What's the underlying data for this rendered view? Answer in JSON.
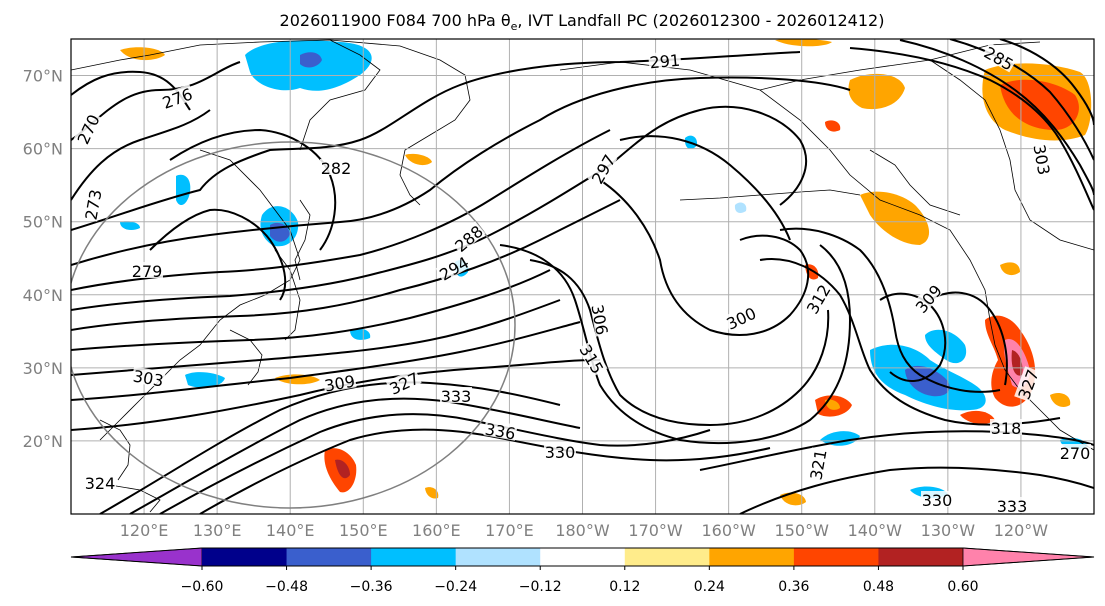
{
  "title_parts": {
    "prefix": "2026011900 F084 700 hPa θ",
    "subscript": "e",
    "suffix": ", IVT Landfall PC (2026012300 - 2026012412)"
  },
  "map": {
    "lat_range": [
      10,
      75
    ],
    "lon_range_east": [
      110,
      250
    ],
    "lat_ticks": [
      "20°N",
      "30°N",
      "40°N",
      "50°N",
      "60°N",
      "70°N"
    ],
    "lon_ticks": [
      "120°E",
      "130°E",
      "140°E",
      "150°E",
      "160°E",
      "170°E",
      "180°W",
      "170°W",
      "160°W",
      "150°W",
      "140°W",
      "130°W",
      "120°W"
    ],
    "grid": true
  },
  "colorbar": {
    "tick_labels": [
      "−0.60",
      "−0.48",
      "−0.36",
      "−0.24",
      "−0.12",
      "0.12",
      "0.24",
      "0.36",
      "0.48",
      "0.60"
    ],
    "colors": [
      "#9932cc",
      "#00008b",
      "#3a5fcd",
      "#00bfff",
      "#b0e2ff",
      "#ffffff",
      "#ffec8b",
      "#ffa500",
      "#ff4500",
      "#b22222",
      "#ff82ab"
    ]
  },
  "contour_labels": [
    "276",
    "270",
    "273",
    "279",
    "282",
    "285",
    "288",
    "291",
    "294",
    "297",
    "300",
    "303",
    "306",
    "309",
    "312",
    "315",
    "318",
    "321",
    "324",
    "327",
    "330",
    "333",
    "336"
  ],
  "chart_data": {
    "type": "heatmap",
    "title": "2026011900 F084 700 hPa θe, IVT Landfall PC (2026012300 - 2026012412)",
    "variable_contours": "700 hPa theta-e (K)",
    "variable_shaded": "IVT Landfall PC",
    "levels": [
      -0.6,
      -0.48,
      -0.36,
      -0.24,
      -0.12,
      0.12,
      0.24,
      0.36,
      0.48,
      0.6
    ],
    "contour_levels": [
      270,
      273,
      276,
      279,
      282,
      285,
      288,
      291,
      294,
      297,
      300,
      303,
      306,
      309,
      312,
      315,
      318,
      321,
      324,
      327,
      330,
      333,
      336
    ]
  }
}
